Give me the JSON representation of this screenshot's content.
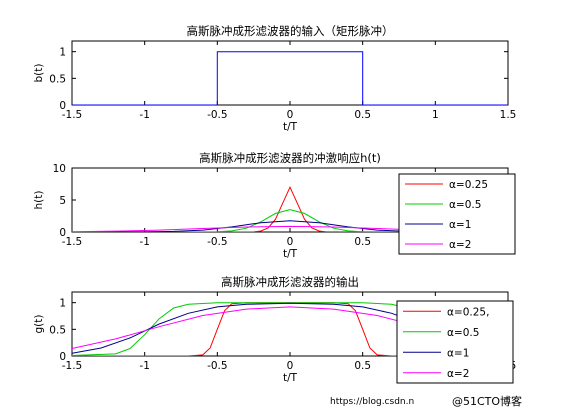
{
  "chart_data": [
    {
      "type": "line",
      "title": "高斯脉冲成形滤波器的输入（矩形脉冲）",
      "xlabel": "t/T",
      "ylabel": "b(t)",
      "xlim": [
        -1.5,
        1.5
      ],
      "ylim": [
        0,
        1.2
      ],
      "xticks": [
        "-1.5",
        "-1",
        "-0.5",
        "0",
        "0.5",
        "1",
        "1.5"
      ],
      "yticks": [
        "0",
        "0.5",
        "1"
      ],
      "series": [
        {
          "color": "#0000ff",
          "x": [
            -1.5,
            -0.5,
            -0.5,
            0.5,
            0.5,
            1.5
          ],
          "y": [
            0,
            0,
            1,
            1,
            0,
            0
          ]
        }
      ],
      "legend": null
    },
    {
      "type": "line",
      "title": "高斯脉冲成形滤波器的冲激响应h(t)",
      "xlabel": "t/T",
      "ylabel": "h(t)",
      "xlim": [
        -1.5,
        1.5
      ],
      "ylim": [
        0,
        10
      ],
      "xticks": [
        "-1.5",
        "-1",
        "-0.5",
        "0",
        "0.5",
        "1",
        "1.5"
      ],
      "yticks": [
        "0",
        "5",
        "10"
      ],
      "legend_position": "right",
      "series": [
        {
          "name": "α=0.25",
          "color": "#ff0000",
          "x": [
            -1.5,
            -0.25,
            -0.2,
            -0.15,
            -0.1,
            -0.05,
            0,
            0.05,
            0.1,
            0.15,
            0.2,
            0.25,
            1.5
          ],
          "y": [
            0,
            0.02,
            0.15,
            0.65,
            2.0,
            4.5,
            7.0,
            4.5,
            2.0,
            0.65,
            0.15,
            0.02,
            0
          ]
        },
        {
          "name": "α=0.5",
          "color": "#00cc00",
          "x": [
            -1.5,
            -0.5,
            -0.4,
            -0.3,
            -0.2,
            -0.1,
            0,
            0.1,
            0.2,
            0.3,
            0.4,
            0.5,
            1.5
          ],
          "y": [
            0,
            0.03,
            0.17,
            0.6,
            1.6,
            2.9,
            3.5,
            2.9,
            1.6,
            0.6,
            0.17,
            0.03,
            0
          ]
        },
        {
          "name": "α=1",
          "color": "#00008b",
          "x": [
            -1.5,
            -1,
            -0.8,
            -0.6,
            -0.4,
            -0.2,
            0,
            0.2,
            0.4,
            0.6,
            0.8,
            1,
            1.5
          ],
          "y": [
            0,
            0.02,
            0.09,
            0.3,
            0.8,
            1.45,
            1.75,
            1.45,
            0.8,
            0.3,
            0.09,
            0.02,
            0
          ]
        },
        {
          "name": "α=2",
          "color": "#ff00ff",
          "x": [
            -1.5,
            -1.2,
            -0.9,
            -0.6,
            -0.3,
            0,
            0.3,
            0.6,
            0.9,
            1.2,
            1.5
          ],
          "y": [
            0.05,
            0.14,
            0.3,
            0.55,
            0.78,
            0.88,
            0.78,
            0.55,
            0.3,
            0.14,
            0.05
          ]
        }
      ]
    },
    {
      "type": "line",
      "title": "高斯脉冲成形滤波器的输出",
      "xlabel": "t/T",
      "ylabel": "g(t)",
      "xlim": [
        -1.5,
        1.5
      ],
      "ylim": [
        0,
        1.2
      ],
      "xticks": [
        "-1.5",
        "-1",
        "-0.5",
        "0",
        "0.5",
        "1",
        "1.5"
      ],
      "yticks": [
        "0",
        "0.5",
        "1"
      ],
      "legend_position": "right",
      "series": [
        {
          "name": "α=0.25,",
          "color": "#ff0000",
          "x": [
            -1.5,
            -0.7,
            -0.6,
            -0.55,
            -0.5,
            -0.45,
            -0.4,
            -0.3,
            0,
            0.3,
            0.4,
            0.45,
            0.5,
            0.55,
            0.6,
            0.7,
            1.5
          ],
          "y": [
            0,
            0,
            0.02,
            0.15,
            0.5,
            0.85,
            0.98,
            1,
            1,
            1,
            0.98,
            0.85,
            0.5,
            0.15,
            0.02,
            0,
            0
          ]
        },
        {
          "name": "α=0.5",
          "color": "#00cc00",
          "x": [
            -1.5,
            -1.2,
            -1.1,
            -1,
            -0.9,
            -0.8,
            -0.7,
            -0.5,
            0,
            0.5,
            0.7,
            0.8,
            0.9,
            1,
            1.1,
            1.2,
            1.5
          ],
          "y": [
            0.01,
            0.04,
            0.14,
            0.4,
            0.7,
            0.9,
            0.97,
            1,
            1,
            1,
            0.97,
            0.9,
            0.7,
            0.4,
            0.14,
            0.04,
            0.01
          ]
        },
        {
          "name": "α=1",
          "color": "#00008b",
          "x": [
            -1.5,
            -1.3,
            -1.1,
            -0.9,
            -0.7,
            -0.5,
            -0.3,
            0,
            0.3,
            0.5,
            0.7,
            0.9,
            1.1,
            1.3,
            1.5
          ],
          "y": [
            0.05,
            0.15,
            0.34,
            0.6,
            0.8,
            0.92,
            0.97,
            0.99,
            0.97,
            0.92,
            0.8,
            0.6,
            0.34,
            0.15,
            0.05
          ]
        },
        {
          "name": "α=2",
          "color": "#ff00ff",
          "x": [
            -1.5,
            -1.2,
            -0.9,
            -0.6,
            -0.3,
            0,
            0.3,
            0.6,
            0.9,
            1.2,
            1.5
          ],
          "y": [
            0.14,
            0.32,
            0.55,
            0.76,
            0.88,
            0.92,
            0.88,
            0.76,
            0.55,
            0.32,
            0.14
          ]
        }
      ]
    }
  ],
  "watermark": {
    "url": "https://blog.csdn.n",
    "brand": "@51CTO博客"
  }
}
